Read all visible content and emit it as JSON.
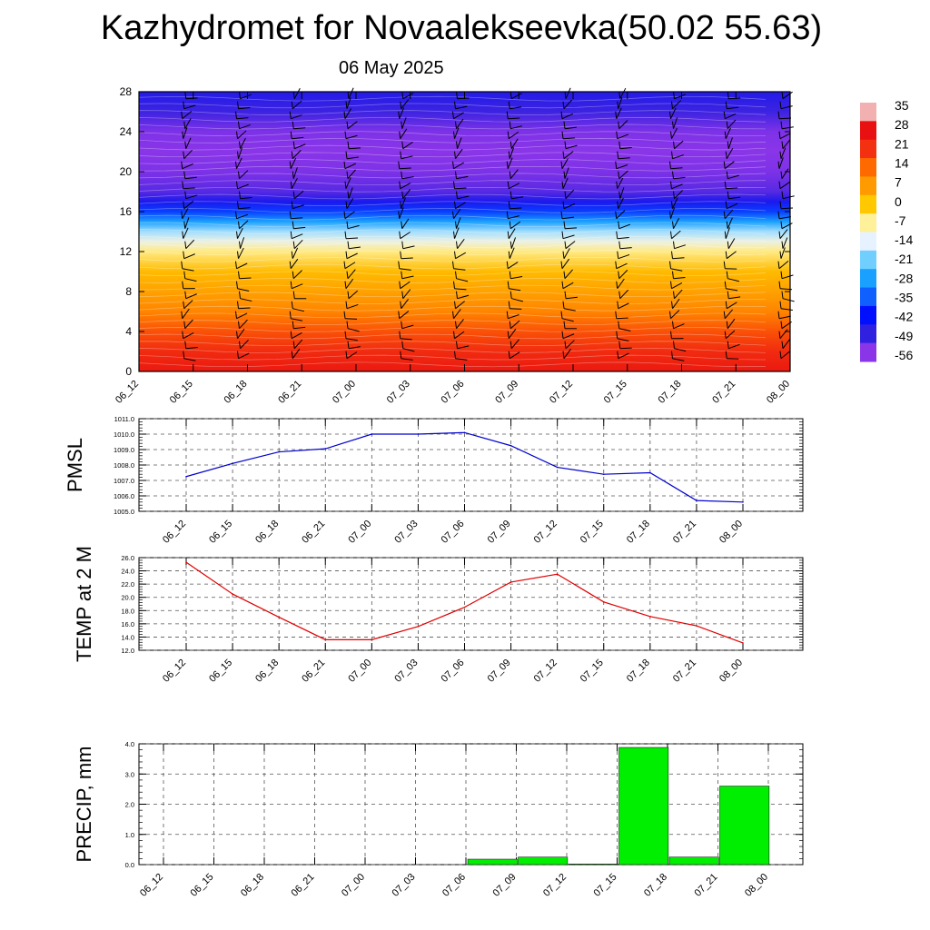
{
  "title": "Kazhydromet for Novaalekseevka(50.02 55.63)",
  "subtitle": "06 May 2025",
  "chart_data": [
    {
      "type": "heatmap",
      "name": "Cross-section temperature with wind barbs",
      "x": [
        "06_12",
        "06_15",
        "06_18",
        "06_21",
        "07_00",
        "07_03",
        "07_06",
        "07_09",
        "07_12",
        "07_15",
        "07_18",
        "07_21",
        "08_00"
      ],
      "y_ticks": [
        0,
        4,
        8,
        12,
        16,
        20,
        24,
        28
      ],
      "ylim": [
        0,
        28
      ],
      "colorbar_labels": [
        "35",
        "28",
        "21",
        "14",
        "7",
        "0",
        "-7",
        "-14",
        "-21",
        "-28",
        "-35",
        "-42",
        "-49",
        "-56"
      ],
      "colorbar_colors": [
        "#f2b0b0",
        "#e81010",
        "#f33010",
        "#ff6a00",
        "#ff9a00",
        "#ffc800",
        "#fff09a",
        "#e6f2ff",
        "#70cfff",
        "#1aa0ff",
        "#1060ff",
        "#0010ff",
        "#3020e0",
        "#8a35e8"
      ],
      "temperature_by_level": [
        {
          "level": 0,
          "value": 26
        },
        {
          "level": 2,
          "value": 22
        },
        {
          "level": 4,
          "value": 17
        },
        {
          "level": 6,
          "value": 10
        },
        {
          "level": 8,
          "value": 6
        },
        {
          "level": 10,
          "value": 2
        },
        {
          "level": 12,
          "value": -6
        },
        {
          "level": 13,
          "value": -12
        },
        {
          "level": 14,
          "value": -18
        },
        {
          "level": 15,
          "value": -28
        },
        {
          "level": 16,
          "value": -38
        },
        {
          "level": 17,
          "value": -46
        },
        {
          "level": 18,
          "value": -52
        },
        {
          "level": 20,
          "value": -55
        },
        {
          "level": 22,
          "value": -57
        },
        {
          "level": 24,
          "value": -55
        },
        {
          "level": 26,
          "value": -50
        },
        {
          "level": 28,
          "value": -47
        }
      ]
    },
    {
      "type": "line",
      "ylabel": "PMSL",
      "ylim": [
        1005.0,
        1011.0
      ],
      "yticks": [
        "1005.0",
        "1006.0",
        "1007.0",
        "1008.0",
        "1009.0",
        "1010.0",
        "1011.0"
      ],
      "categories": [
        "06_12",
        "06_15",
        "06_18",
        "06_21",
        "07_00",
        "07_03",
        "07_06",
        "07_09",
        "07_12",
        "07_15",
        "07_18",
        "07_21",
        "08_00"
      ],
      "values": [
        1007.25,
        1008.1,
        1008.85,
        1009.05,
        1010.0,
        1010.0,
        1010.1,
        1009.25,
        1007.85,
        1007.4,
        1007.5,
        1005.7,
        1005.6
      ],
      "color": "#0000cc"
    },
    {
      "type": "line",
      "ylabel": "TEMP at 2 M",
      "ylim": [
        12.0,
        26.0
      ],
      "yticks": [
        "12.0",
        "14.0",
        "16.0",
        "18.0",
        "20.0",
        "22.0",
        "24.0",
        "26.0"
      ],
      "categories": [
        "06_12",
        "06_15",
        "06_18",
        "06_21",
        "07_00",
        "07_03",
        "07_06",
        "07_09",
        "07_12",
        "07_15",
        "07_18",
        "07_21",
        "08_00"
      ],
      "values": [
        25.3,
        20.5,
        17.0,
        13.6,
        13.6,
        15.6,
        18.5,
        22.3,
        23.5,
        19.3,
        17.1,
        15.7,
        13.1
      ],
      "color": "#e00000"
    },
    {
      "type": "bar",
      "ylabel": "PRECIP, mm",
      "ylim": [
        0.0,
        4.0
      ],
      "yticks": [
        "0.0",
        "1.0",
        "2.0",
        "3.0",
        "4.0"
      ],
      "categories": [
        "06_12",
        "06_15",
        "06_18",
        "06_21",
        "07_00",
        "07_03",
        "07_06",
        "07_09",
        "07_12",
        "07_15",
        "07_18",
        "07_21",
        "08_00"
      ],
      "values": [
        0,
        0,
        0,
        0,
        0,
        0,
        0.18,
        0.25,
        0.02,
        3.88,
        0.25,
        2.6,
        0
      ],
      "color": "#00ee00"
    }
  ]
}
